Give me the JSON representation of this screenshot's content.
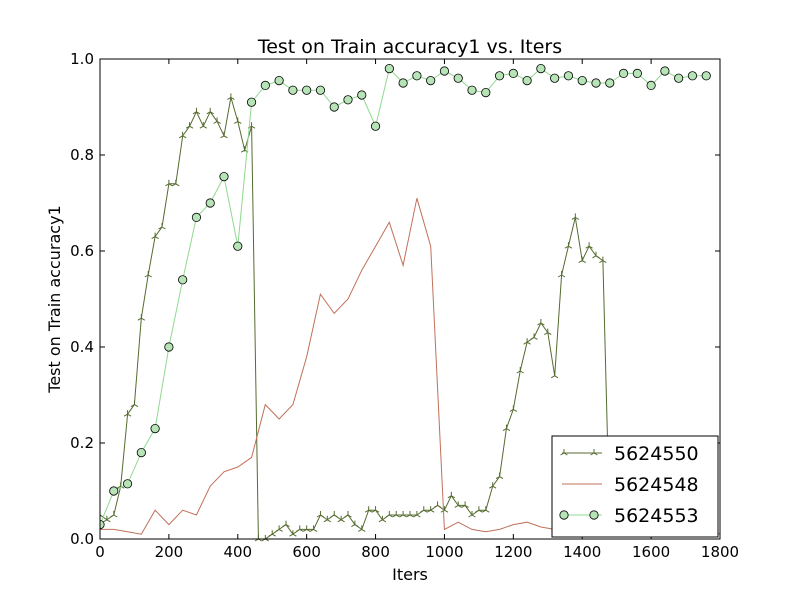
{
  "chart_data": {
    "type": "line",
    "title": "Test on Train accuracy1  vs. Iters",
    "xlabel": "Iters",
    "ylabel": "Test on Train accuracy1",
    "xlim": [
      0,
      1800
    ],
    "ylim": [
      0.0,
      1.0
    ],
    "xticks": [
      0,
      200,
      400,
      600,
      800,
      1000,
      1200,
      1400,
      1600,
      1800
    ],
    "xtick_labels": [
      "0",
      "200",
      "400",
      "600",
      "800",
      "1000",
      "1200",
      "1400",
      "1600",
      "1800"
    ],
    "yticks": [
      0.0,
      0.2,
      0.4,
      0.6,
      0.8,
      1.0
    ],
    "ytick_labels": [
      "0.0",
      "0.2",
      "0.4",
      "0.6",
      "0.8",
      "1.0"
    ],
    "grid": false,
    "legend_position": "lower-right",
    "series": [
      {
        "name": "5624550",
        "color": "#556b2f",
        "marker": "tri",
        "x": [
          0,
          20,
          40,
          60,
          80,
          100,
          120,
          140,
          160,
          180,
          200,
          220,
          240,
          260,
          280,
          300,
          320,
          340,
          360,
          380,
          400,
          420,
          440,
          460,
          480,
          500,
          520,
          540,
          560,
          580,
          600,
          620,
          640,
          660,
          680,
          700,
          720,
          740,
          760,
          780,
          800,
          820,
          840,
          860,
          880,
          900,
          920,
          940,
          960,
          980,
          1000,
          1020,
          1040,
          1060,
          1080,
          1100,
          1120,
          1140,
          1160,
          1180,
          1200,
          1220,
          1240,
          1260,
          1280,
          1300,
          1320,
          1340,
          1360,
          1380,
          1400,
          1420,
          1440,
          1460,
          1480
        ],
        "y": [
          0.05,
          0.04,
          0.05,
          0.11,
          0.26,
          0.28,
          0.46,
          0.55,
          0.63,
          0.65,
          0.74,
          0.74,
          0.84,
          0.86,
          0.89,
          0.86,
          0.89,
          0.87,
          0.84,
          0.92,
          0.87,
          0.81,
          0.86,
          0.0,
          0.0,
          0.01,
          0.02,
          0.03,
          0.01,
          0.02,
          0.02,
          0.02,
          0.05,
          0.04,
          0.05,
          0.04,
          0.05,
          0.03,
          0.02,
          0.06,
          0.06,
          0.04,
          0.05,
          0.05,
          0.05,
          0.05,
          0.05,
          0.06,
          0.06,
          0.07,
          0.06,
          0.09,
          0.07,
          0.07,
          0.05,
          0.06,
          0.06,
          0.11,
          0.13,
          0.23,
          0.27,
          0.35,
          0.41,
          0.42,
          0.45,
          0.43,
          0.34,
          0.55,
          0.61,
          0.67,
          0.58,
          0.61,
          0.59,
          0.58,
          0.02
        ]
      },
      {
        "name": "5624548",
        "color": "#c0705a",
        "marker": "none",
        "x": [
          0,
          40,
          80,
          120,
          160,
          200,
          240,
          280,
          320,
          360,
          400,
          440,
          480,
          520,
          560,
          600,
          640,
          680,
          720,
          760,
          800,
          840,
          880,
          920,
          960,
          1000,
          1040,
          1080,
          1120,
          1160,
          1200,
          1240,
          1280,
          1320,
          1360,
          1400,
          1440,
          1480,
          1520,
          1560,
          1600,
          1640,
          1680,
          1720,
          1760,
          1800
        ],
        "y": [
          0.02,
          0.02,
          0.015,
          0.01,
          0.06,
          0.03,
          0.06,
          0.05,
          0.11,
          0.14,
          0.15,
          0.17,
          0.28,
          0.25,
          0.28,
          0.38,
          0.51,
          0.47,
          0.5,
          0.56,
          0.61,
          0.66,
          0.57,
          0.71,
          0.61,
          0.02,
          0.035,
          0.02,
          0.015,
          0.02,
          0.03,
          0.035,
          0.025,
          0.02,
          0.02,
          0.02,
          0.025,
          0.02,
          0.02,
          0.025,
          0.02,
          0.02,
          0.02,
          0.01,
          0.02,
          0.01
        ]
      },
      {
        "name": "5624553",
        "color": "#2e8b2e",
        "line_color": "#90d890",
        "marker_face": "#b7e4b7",
        "marker": "circle",
        "x": [
          0,
          40,
          80,
          120,
          160,
          200,
          240,
          280,
          320,
          360,
          400,
          440,
          480,
          520,
          560,
          600,
          640,
          680,
          720,
          760,
          800,
          840,
          880,
          920,
          960,
          1000,
          1040,
          1080,
          1120,
          1160,
          1200,
          1240,
          1280,
          1320,
          1360,
          1400,
          1440,
          1480,
          1520,
          1560,
          1600,
          1640,
          1680,
          1720,
          1760
        ],
        "y": [
          0.03,
          0.1,
          0.115,
          0.18,
          0.23,
          0.4,
          0.54,
          0.67,
          0.7,
          0.755,
          0.61,
          0.91,
          0.945,
          0.955,
          0.935,
          0.935,
          0.935,
          0.9,
          0.915,
          0.925,
          0.86,
          0.98,
          0.95,
          0.965,
          0.955,
          0.975,
          0.96,
          0.935,
          0.93,
          0.965,
          0.97,
          0.955,
          0.98,
          0.96,
          0.965,
          0.955,
          0.95,
          0.95,
          0.97,
          0.97,
          0.945,
          0.975,
          0.96,
          0.965,
          0.965
        ]
      }
    ]
  }
}
